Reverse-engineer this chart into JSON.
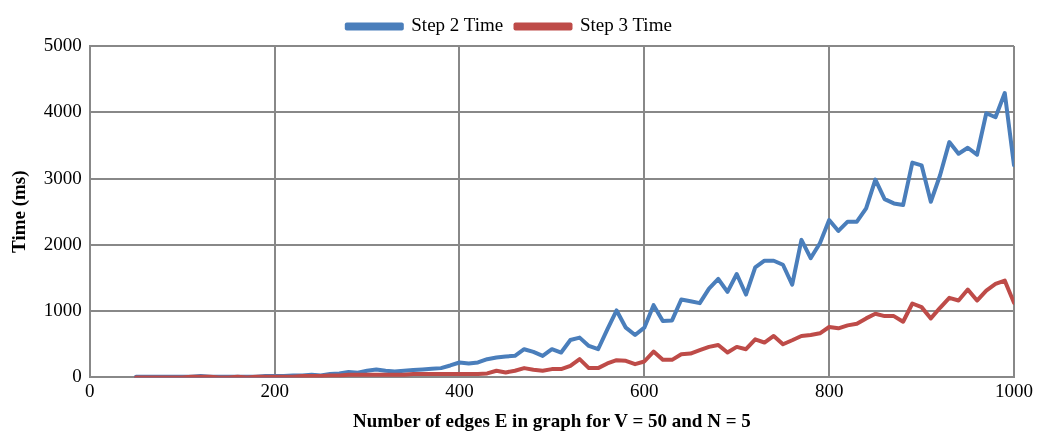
{
  "chart_data": {
    "type": "line",
    "xlabel": "Number of edges E in graph for V = 50 and N = 5",
    "ylabel": "Time (ms)",
    "x": [
      50,
      60,
      70,
      80,
      90,
      100,
      110,
      120,
      130,
      140,
      150,
      160,
      170,
      180,
      190,
      200,
      210,
      220,
      230,
      240,
      250,
      260,
      270,
      280,
      290,
      300,
      310,
      320,
      330,
      340,
      350,
      360,
      370,
      380,
      390,
      400,
      410,
      420,
      430,
      440,
      450,
      460,
      470,
      480,
      490,
      500,
      510,
      520,
      530,
      540,
      550,
      560,
      570,
      580,
      590,
      600,
      610,
      620,
      630,
      640,
      650,
      660,
      670,
      680,
      690,
      700,
      710,
      720,
      730,
      740,
      750,
      760,
      770,
      780,
      790,
      800,
      810,
      820,
      830,
      840,
      850,
      860,
      870,
      880,
      890,
      900,
      910,
      920,
      930,
      940,
      950,
      960,
      970,
      980,
      990,
      1000
    ],
    "series": [
      {
        "name": "Step 2 Time",
        "color": "#4a7ebb",
        "values": [
          10,
          10,
          10,
          10,
          10,
          10,
          10,
          20,
          10,
          10,
          10,
          10,
          10,
          10,
          20,
          20,
          20,
          30,
          30,
          40,
          30,
          50,
          60,
          80,
          70,
          100,
          120,
          100,
          90,
          100,
          110,
          120,
          130,
          140,
          180,
          225,
          210,
          225,
          275,
          300,
          315,
          325,
          425,
          385,
          325,
          425,
          375,
          565,
          600,
          475,
          425,
          725,
          1010,
          750,
          640,
          750,
          1090,
          850,
          860,
          1175,
          1150,
          1120,
          1340,
          1485,
          1290,
          1560,
          1250,
          1660,
          1760,
          1760,
          1700,
          1400,
          2075,
          1800,
          2025,
          2375,
          2210,
          2350,
          2350,
          2550,
          2985,
          2690,
          2625,
          2600,
          3240,
          3200,
          2650,
          3050,
          3550,
          3375,
          3465,
          3360,
          3985,
          3925,
          4290,
          3200
        ]
      },
      {
        "name": "Step 3 Time",
        "color": "#be4b48",
        "values": [
          0,
          0,
          0,
          0,
          0,
          0,
          10,
          10,
          10,
          0,
          0,
          10,
          0,
          10,
          10,
          10,
          10,
          10,
          20,
          20,
          20,
          30,
          30,
          40,
          40,
          40,
          40,
          40,
          40,
          40,
          50,
          50,
          50,
          50,
          50,
          50,
          50,
          50,
          60,
          100,
          75,
          100,
          140,
          115,
          100,
          125,
          125,
          175,
          275,
          140,
          140,
          210,
          260,
          250,
          200,
          240,
          390,
          265,
          265,
          350,
          360,
          410,
          460,
          490,
          375,
          460,
          425,
          575,
          525,
          625,
          500,
          560,
          625,
          640,
          665,
          760,
          740,
          785,
          810,
          890,
          960,
          925,
          925,
          840,
          1115,
          1060,
          890,
          1050,
          1200,
          1160,
          1325,
          1160,
          1310,
          1410,
          1460,
          1125
        ]
      }
    ],
    "xlim": [
      0,
      1000
    ],
    "xticks": [
      0,
      200,
      400,
      600,
      800,
      1000
    ],
    "ylim": [
      0,
      5000
    ],
    "yticks": [
      0,
      1000,
      2000,
      3000,
      4000,
      5000
    ],
    "grid": true,
    "legend": "top",
    "marker": "none",
    "line_style": "solid"
  }
}
